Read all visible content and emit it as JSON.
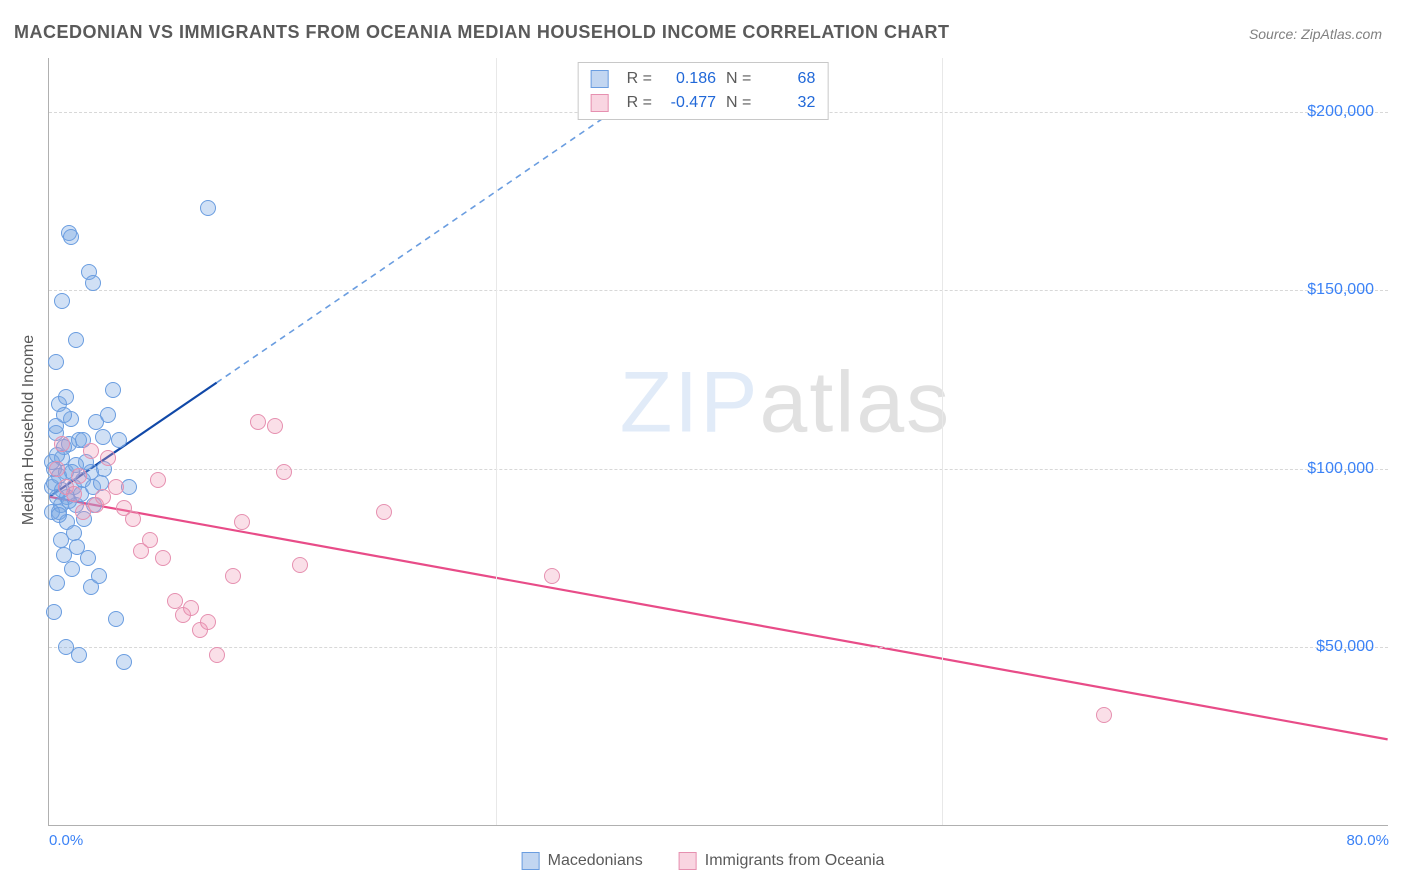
{
  "title": "MACEDONIAN VS IMMIGRANTS FROM OCEANIA MEDIAN HOUSEHOLD INCOME CORRELATION CHART",
  "source": "Source: ZipAtlas.com",
  "ylabel": "Median Household Income",
  "watermark_a": "ZIP",
  "watermark_b": "atlas",
  "chart": {
    "type": "scatter",
    "xlim": [
      0,
      80
    ],
    "ylim": [
      0,
      215000
    ],
    "yticks": [
      50000,
      100000,
      150000,
      200000
    ],
    "ytick_labels": [
      "$50,000",
      "$100,000",
      "$150,000",
      "$200,000"
    ],
    "xticks": [
      0,
      80
    ],
    "xtick_labels": [
      "0.0%",
      "80.0%"
    ],
    "x_minor_ticks": [
      26.67,
      53.33
    ],
    "grid_color": "#d8d8d8",
    "background_color": "#ffffff",
    "tick_color": "#3b82f6",
    "label_fontsize": 16,
    "title_fontsize": 18,
    "marker_size": 16,
    "series": [
      {
        "name": "Macedonians",
        "color_fill": "rgba(120,165,225,0.35)",
        "color_stroke": "#6a9de0",
        "trend_color": "#1048a8",
        "trend_dash_color": "#6a9de0",
        "trend_width": 2.2,
        "R": "0.186",
        "N": "68",
        "trend_start": [
          0,
          92000
        ],
        "trend_solid_end": [
          10,
          124000
        ],
        "trend_dash_end": [
          34,
          201000
        ],
        "points": [
          [
            0.2,
            95000
          ],
          [
            0.3,
            100000
          ],
          [
            0.5,
            92000
          ],
          [
            0.6,
            88000
          ],
          [
            0.4,
            110000
          ],
          [
            0.8,
            103000
          ],
          [
            1.0,
            99000
          ],
          [
            1.2,
            107000
          ],
          [
            1.5,
            95000
          ],
          [
            1.6,
            90000
          ],
          [
            1.1,
            85000
          ],
          [
            0.7,
            80000
          ],
          [
            0.9,
            76000
          ],
          [
            1.3,
            114000
          ],
          [
            1.8,
            108000
          ],
          [
            2.0,
            97000
          ],
          [
            2.2,
            102000
          ],
          [
            2.5,
            99000
          ],
          [
            2.8,
            113000
          ],
          [
            3.2,
            109000
          ],
          [
            3.5,
            115000
          ],
          [
            1.4,
            72000
          ],
          [
            0.5,
            68000
          ],
          [
            0.3,
            60000
          ],
          [
            1.0,
            50000
          ],
          [
            1.8,
            48000
          ],
          [
            2.5,
            67000
          ],
          [
            4.5,
            46000
          ],
          [
            3.0,
            70000
          ],
          [
            4.0,
            58000
          ],
          [
            0.4,
            130000
          ],
          [
            1.6,
            136000
          ],
          [
            2.4,
            155000
          ],
          [
            2.6,
            152000
          ],
          [
            0.8,
            147000
          ],
          [
            1.2,
            166000
          ],
          [
            1.3,
            165000
          ],
          [
            3.8,
            122000
          ],
          [
            4.2,
            108000
          ],
          [
            9.5,
            173000
          ],
          [
            4.8,
            95000
          ],
          [
            2.1,
            86000
          ],
          [
            0.6,
            118000
          ],
          [
            1.9,
            93000
          ],
          [
            0.2,
            102000
          ],
          [
            0.9,
            106000
          ],
          [
            1.5,
            82000
          ],
          [
            2.7,
            90000
          ],
          [
            0.6,
            98000
          ],
          [
            1.1,
            92000
          ],
          [
            3.3,
            100000
          ],
          [
            0.4,
            112000
          ],
          [
            0.7,
            90000
          ],
          [
            1.7,
            78000
          ],
          [
            2.3,
            75000
          ],
          [
            0.5,
            104000
          ],
          [
            0.3,
            96000
          ],
          [
            1.6,
            101000
          ],
          [
            2.0,
            108000
          ],
          [
            0.8,
            94000
          ],
          [
            1.4,
            99000
          ],
          [
            0.2,
            88000
          ],
          [
            2.6,
            95000
          ],
          [
            3.1,
            96000
          ],
          [
            0.9,
            115000
          ],
          [
            1.0,
            120000
          ],
          [
            0.6,
            87000
          ],
          [
            1.2,
            91000
          ]
        ]
      },
      {
        "name": "Immigrants from Oceania",
        "color_fill": "rgba(240,150,180,0.3)",
        "color_stroke": "#e690b0",
        "trend_color": "#e84c88",
        "trend_width": 2.2,
        "R": "-0.477",
        "N": "32",
        "trend_start": [
          0,
          92000
        ],
        "trend_end": [
          80,
          24000
        ],
        "points": [
          [
            0.5,
            100000
          ],
          [
            1.0,
            95000
          ],
          [
            1.5,
            93000
          ],
          [
            2.0,
            88000
          ],
          [
            2.8,
            90000
          ],
          [
            3.2,
            92000
          ],
          [
            4.5,
            89000
          ],
          [
            5.0,
            86000
          ],
          [
            5.5,
            77000
          ],
          [
            6.0,
            80000
          ],
          [
            6.8,
            75000
          ],
          [
            7.5,
            63000
          ],
          [
            8.0,
            59000
          ],
          [
            8.5,
            61000
          ],
          [
            9.0,
            55000
          ],
          [
            9.5,
            57000
          ],
          [
            10.0,
            48000
          ],
          [
            11.0,
            70000
          ],
          [
            12.5,
            113000
          ],
          [
            13.5,
            112000
          ],
          [
            11.5,
            85000
          ],
          [
            14.0,
            99000
          ],
          [
            15.0,
            73000
          ],
          [
            20.0,
            88000
          ],
          [
            30.0,
            70000
          ],
          [
            63.0,
            31000
          ],
          [
            6.5,
            97000
          ],
          [
            4.0,
            95000
          ],
          [
            3.5,
            103000
          ],
          [
            2.5,
            105000
          ],
          [
            1.8,
            98000
          ],
          [
            0.8,
            107000
          ]
        ]
      }
    ]
  },
  "legend": {
    "item1": "Macedonians",
    "item2": "Immigrants from Oceania"
  },
  "stats": {
    "r_label": "R =",
    "n_label": "N ="
  }
}
